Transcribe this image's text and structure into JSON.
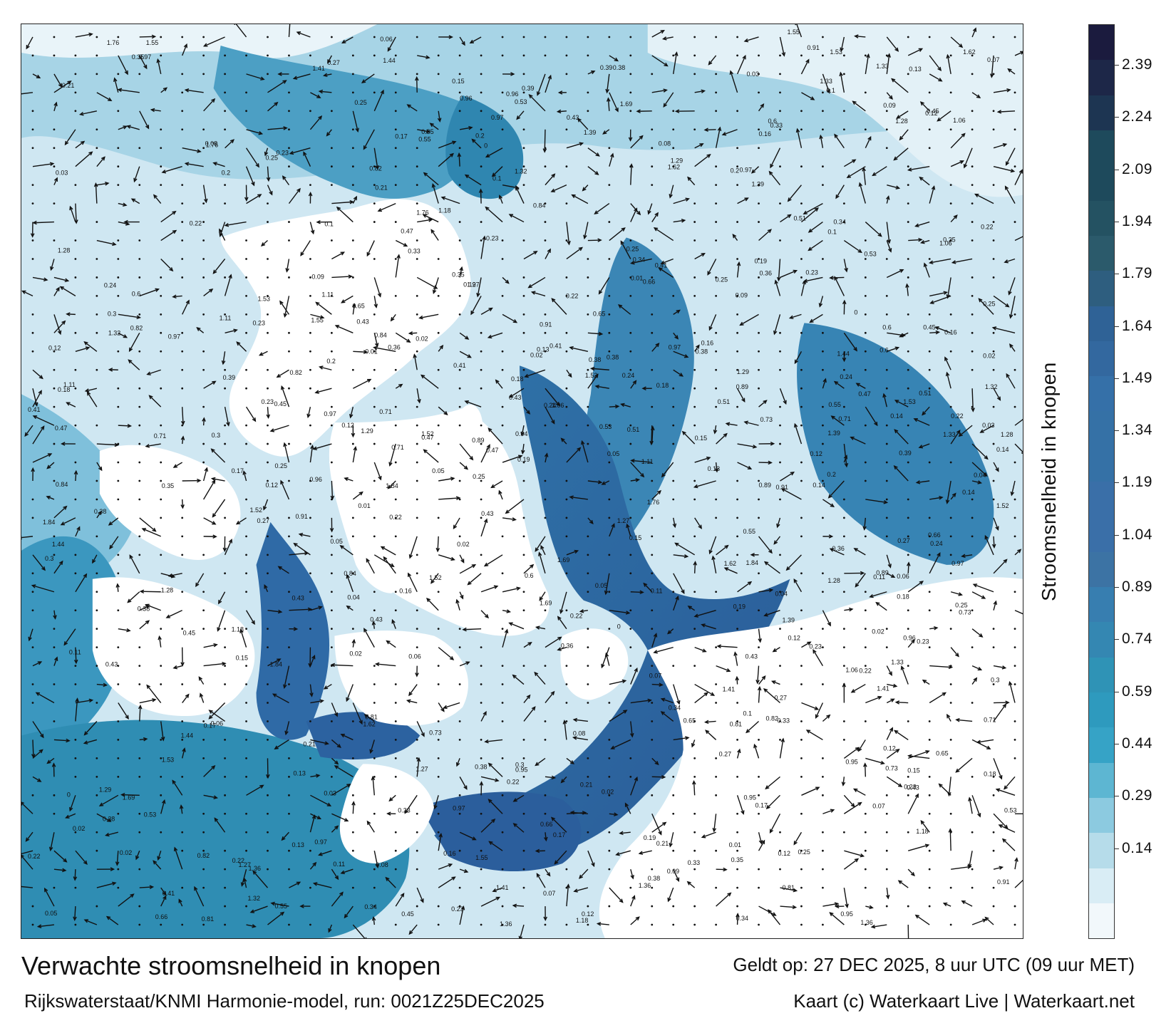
{
  "title": "Verwachte stroomsnelheid in knopen",
  "subtitle": "Rijkswaterstaat/KNMI Harmonie-model, run: 0021Z25DEC2025",
  "valid_time": "Geldt op: 27 DEC 2025, 8 uur UTC (09 uur MET)",
  "credit": "Kaart (c) Waterkaart Live | Waterkaart.net",
  "legend": {
    "title": "Stroomsnelheid in knopen",
    "ticks": [
      "2.39",
      "2.24",
      "2.09",
      "1.94",
      "1.79",
      "1.64",
      "1.49",
      "1.34",
      "1.19",
      "1.04",
      "0.89",
      "0.74",
      "0.59",
      "0.44",
      "0.29",
      "0.14"
    ],
    "colors": [
      "#1b1b3e",
      "#1d2748",
      "#1d3552",
      "#1e4a5c",
      "#1e4a5c",
      "#245262",
      "#2b5a6b",
      "#2e5e7f",
      "#2f6296",
      "#33689f",
      "#3570a8",
      "#3571a6",
      "#3571a6",
      "#3a6fa8",
      "#3a6fa8",
      "#3c73a4",
      "#377eb0",
      "#3487b2",
      "#2f93b6",
      "#2e9abe",
      "#36a3c6",
      "#5db6d2",
      "#8ccae0",
      "#b6dcea",
      "#d9edf5",
      "#f2f8fb"
    ]
  },
  "map": {
    "water_colors": {
      "deep": "#2e5f9a",
      "mid": "#2f8db3",
      "light": "#8ec7de",
      "pale": "#d6ebf4"
    },
    "land_color": "#ffffff",
    "sample_labels": [
      "0.25",
      "0.24",
      "0.22",
      "0.3",
      "0.23",
      "0.34",
      "0.38",
      "0.35",
      "0.25",
      "0.17",
      "0.21",
      "0.02",
      "0.18",
      "0.19",
      "0.2",
      "0.23",
      "0.45",
      "0.47",
      "0.53",
      "0.82",
      "0.91",
      "0.71",
      "0.6",
      "0.41",
      "0.43",
      "0.27",
      "0.22",
      "0.16",
      "0.13",
      "0.15",
      "0.1",
      "0.12",
      "0.05",
      "1.52",
      "1.28",
      "0.97",
      "1.33",
      "1.44",
      "1.11",
      "0.96",
      "1.55",
      "1.39",
      "1.41",
      "1.32",
      "1.29",
      "0.95",
      "1.06",
      "1.27",
      "1.36",
      "1.18",
      "1.84",
      "1.76",
      "1.62",
      "1.69",
      "1.53",
      "0.73",
      "0.66",
      "0.55",
      "0.65",
      "0.51",
      "0.43",
      "0.38",
      "0.84",
      "0.81",
      "0.89",
      "0.97",
      "0.36",
      "0.39",
      "0.33",
      "0.12",
      "0.09",
      "0.11",
      "0.14",
      "0.04",
      "0.07",
      "0.08",
      "0.06",
      "0.02",
      "0.01",
      "0.03",
      "0"
    ]
  }
}
